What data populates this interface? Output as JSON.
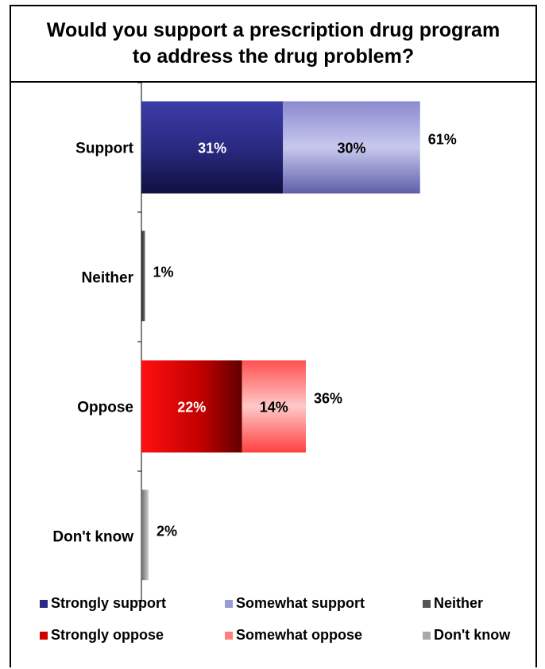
{
  "chart_data": {
    "type": "bar",
    "orientation": "horizontal",
    "stacked": true,
    "title": "Would you support a prescription drug program to address the drug problem?",
    "categories": [
      "Support",
      "Neither",
      "Oppose",
      "Don't know"
    ],
    "rows": [
      {
        "category": "Support",
        "total_label": "61%",
        "segments": [
          {
            "series": "Strongly support",
            "value": 31,
            "label": "31%"
          },
          {
            "series": "Somewhat support",
            "value": 30,
            "label": "30%"
          }
        ]
      },
      {
        "category": "Neither",
        "total_label": "1%",
        "segments": [
          {
            "series": "Neither",
            "value": 1,
            "label": ""
          }
        ]
      },
      {
        "category": "Oppose",
        "total_label": "36%",
        "segments": [
          {
            "series": "Strongly oppose",
            "value": 22,
            "label": "22%"
          },
          {
            "series": "Somewhat oppose",
            "value": 14,
            "label": "14%"
          }
        ]
      },
      {
        "category": "Don't know",
        "total_label": "2%",
        "segments": [
          {
            "series": "Don't know",
            "value": 2,
            "label": ""
          }
        ]
      }
    ],
    "xlim": [
      0,
      100
    ],
    "grid": false,
    "legend_position": "bottom",
    "legend": [
      {
        "series": "Strongly support",
        "color": "#2b2b86"
      },
      {
        "series": "Somewhat support",
        "color": "#9b9bd6"
      },
      {
        "series": "Neither",
        "color": "#555555"
      },
      {
        "series": "Strongly oppose",
        "color": "#d40000"
      },
      {
        "series": "Somewhat oppose",
        "color": "#ff7f7f"
      },
      {
        "series": "Don't know",
        "color": "#a8a8a8"
      }
    ],
    "colors": {
      "Strongly support": "#2b2b86",
      "Somewhat support": "#9b9bd6",
      "Neither": "#555555",
      "Strongly oppose": "#d40000",
      "Somewhat oppose": "#ff7f7f",
      "Don't know": "#a8a8a8"
    }
  }
}
